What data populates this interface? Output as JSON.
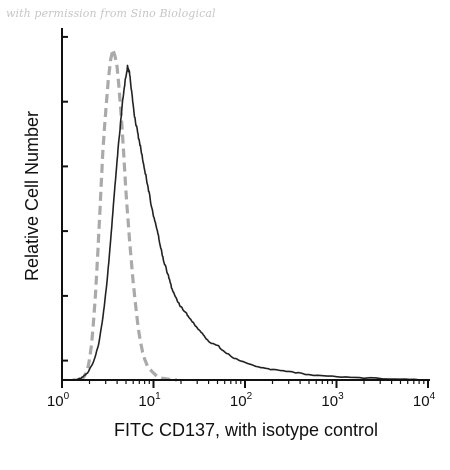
{
  "watermark": "with permission from Sino Biological",
  "chart_data": {
    "type": "line",
    "xlabel": "FITC CD137, with isotype control",
    "ylabel": "Relative Cell Number",
    "xscale": "log",
    "xlim": [
      1,
      10000
    ],
    "ylim": [
      0,
      100
    ],
    "x_ticks": [
      {
        "base": "10",
        "exp": "0",
        "value": 1
      },
      {
        "base": "10",
        "exp": "1",
        "value": 10
      },
      {
        "base": "10",
        "exp": "2",
        "value": 100
      },
      {
        "base": "10",
        "exp": "3",
        "value": 1000
      },
      {
        "base": "10",
        "exp": "4",
        "value": 10000
      }
    ],
    "y_tick_count": 6,
    "grid": false,
    "legend": "none",
    "series": [
      {
        "color": "#aaaaaa",
        "style": "dashed",
        "x": [
          1.6,
          1.75,
          1.9,
          2.0,
          2.1,
          2.2,
          2.3,
          2.4,
          2.5,
          2.6,
          2.7,
          2.8,
          3.0,
          3.2,
          3.4,
          3.6,
          3.8,
          4.0,
          4.2,
          4.4,
          4.6,
          4.8,
          5.0,
          5.3,
          5.6,
          6.0,
          6.4,
          6.8,
          7.2,
          7.6,
          8.0,
          8.6,
          9.2,
          10.0,
          11.0,
          12.5,
          14.0,
          16.0,
          18.0
        ],
        "y": [
          0,
          1,
          3,
          6,
          10,
          16,
          23,
          31,
          40,
          49,
          58,
          66,
          77,
          86,
          92,
          95,
          93,
          90,
          84,
          77,
          70,
          62,
          54,
          45,
          37,
          28,
          21,
          15,
          11,
          8,
          6,
          4,
          3,
          2,
          1,
          0.5,
          0.3,
          0.1,
          0
        ]
      },
      {
        "color": "#222222",
        "style": "solid",
        "x": [
          1.0,
          1.3,
          1.6,
          1.9,
          2.2,
          2.5,
          2.8,
          3.1,
          3.4,
          3.7,
          4.0,
          4.3,
          4.6,
          4.9,
          5.2,
          5.5,
          5.8,
          6.2,
          6.7,
          7.2,
          7.8,
          8.5,
          9.2,
          10.0,
          11.0,
          12.0,
          13.0,
          14.5,
          16.0,
          18.0,
          20.0,
          23.0,
          26.0,
          30.0,
          35.0,
          40.0,
          50.0,
          60.0,
          80.0,
          100.0,
          150.0,
          200.0,
          300.0,
          500.0,
          1000.0,
          2000.0,
          5000.0,
          10000.0
        ],
        "y": [
          0,
          0,
          0.5,
          2,
          5,
          10,
          18,
          28,
          40,
          52,
          63,
          72,
          80,
          86,
          90,
          88,
          82,
          76,
          71,
          67,
          62,
          57,
          52,
          47,
          43,
          38,
          34,
          30,
          26,
          23,
          21,
          19,
          17,
          15,
          13,
          11,
          10,
          8,
          6,
          5,
          3.5,
          3,
          2.5,
          1.5,
          1,
          0.6,
          0.3,
          0
        ]
      }
    ]
  }
}
